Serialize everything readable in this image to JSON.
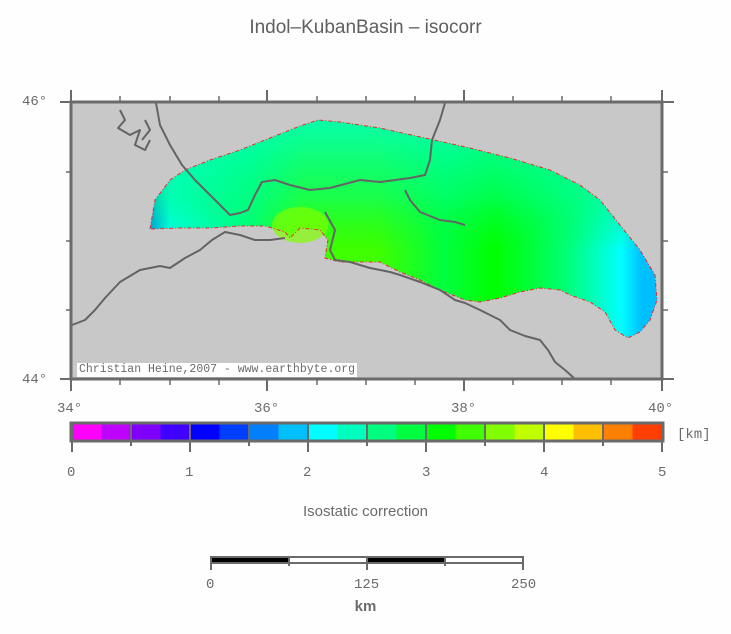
{
  "title": "Indol–KubanBasin – isocorr",
  "map": {
    "axes": {
      "y_labels": [
        "46°",
        "44°"
      ],
      "x_labels": [
        "34°",
        "36°",
        "38°",
        "40°"
      ],
      "lon_range": [
        34,
        40
      ],
      "lat_range": [
        44,
        46
      ]
    },
    "credit": "Christian Heine,2007 - www.earthbyte.org",
    "background_color": "#c8c8c8",
    "coastline_color": "#646464",
    "basin_outline_color": "#e03030"
  },
  "colorbar": {
    "title": "Isostatic correction",
    "unit": "[km]",
    "tick_labels": [
      "0",
      "1",
      "2",
      "3",
      "4",
      "5"
    ],
    "range": [
      0,
      5
    ],
    "step": 0.25,
    "colors": [
      "#ff00ff",
      "#bf00ff",
      "#7f00ff",
      "#3f00ff",
      "#0000ff",
      "#003fff",
      "#007fff",
      "#00bfff",
      "#00ffff",
      "#00ffbf",
      "#00ff7f",
      "#00ff3f",
      "#00ff00",
      "#3fff00",
      "#7fff00",
      "#bfff00",
      "#ffff00",
      "#ffbf00",
      "#ff7f00",
      "#ff3f00"
    ]
  },
  "scalebar": {
    "labels": [
      "0",
      "125",
      "250"
    ],
    "unit": "km"
  }
}
